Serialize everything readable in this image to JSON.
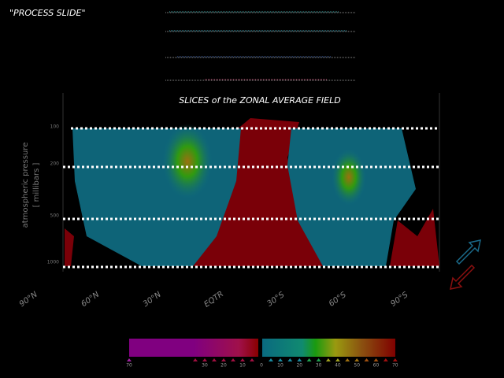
{
  "header": {
    "title": "\"PROCESS SLIDE\""
  },
  "figure": {
    "title": "SLICES of the ZONAL AVERAGE FIELD",
    "y_axis_label": "atmospheric pressure",
    "y_axis_unit": "[ millibars ]",
    "pressure_levels": [
      100,
      200,
      500,
      1000
    ],
    "latitudes": [
      "90°N",
      "60°N",
      "30°N",
      "EQTR",
      "30°S",
      "60°S",
      "90°S"
    ]
  },
  "colorbar": {
    "left_ticks": [
      70,
      30,
      20,
      10
    ],
    "center_tick": 0,
    "right_ticks": [
      10,
      20,
      30,
      40,
      50,
      60,
      70
    ]
  }
}
